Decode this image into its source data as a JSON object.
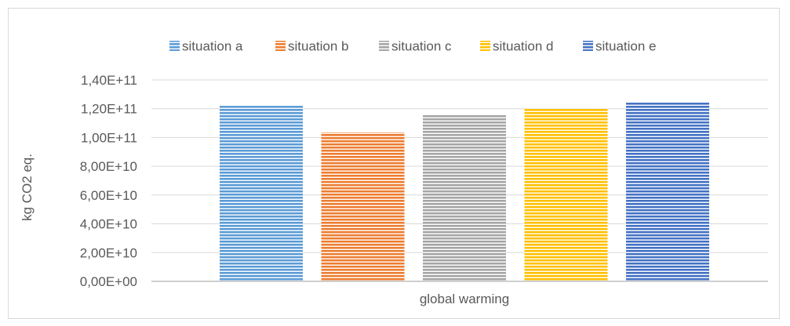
{
  "chart_data": {
    "type": "bar",
    "title": "",
    "categories": [
      "global warming"
    ],
    "xlabel": "",
    "ylabel": "kg CO2 eq.",
    "ylim": [
      0,
      140000000000.0
    ],
    "yticks": [
      0,
      20000000000.0,
      40000000000.0,
      60000000000.0,
      80000000000.0,
      100000000000.0,
      120000000000.0,
      140000000000.0
    ],
    "ytick_labels": [
      "0,00E+00",
      "2,00E+10",
      "4,00E+10",
      "6,00E+10",
      "8,00E+10",
      "1,00E+11",
      "1,20E+11",
      "1,40E+11"
    ],
    "grid": true,
    "legend_position": "top",
    "series": [
      {
        "name": "situation a",
        "values": [
          122000000000.0
        ],
        "color": "#5b9bd5"
      },
      {
        "name": "situation b",
        "values": [
          103500000000.0
        ],
        "color": "#ed7d31"
      },
      {
        "name": "situation c",
        "values": [
          116000000000.0
        ],
        "color": "#a5a5a5"
      },
      {
        "name": "situation d",
        "values": [
          120000000000.0
        ],
        "color": "#ffc000"
      },
      {
        "name": "situation e",
        "values": [
          124500000000.0
        ],
        "color": "#4472c4"
      }
    ]
  }
}
